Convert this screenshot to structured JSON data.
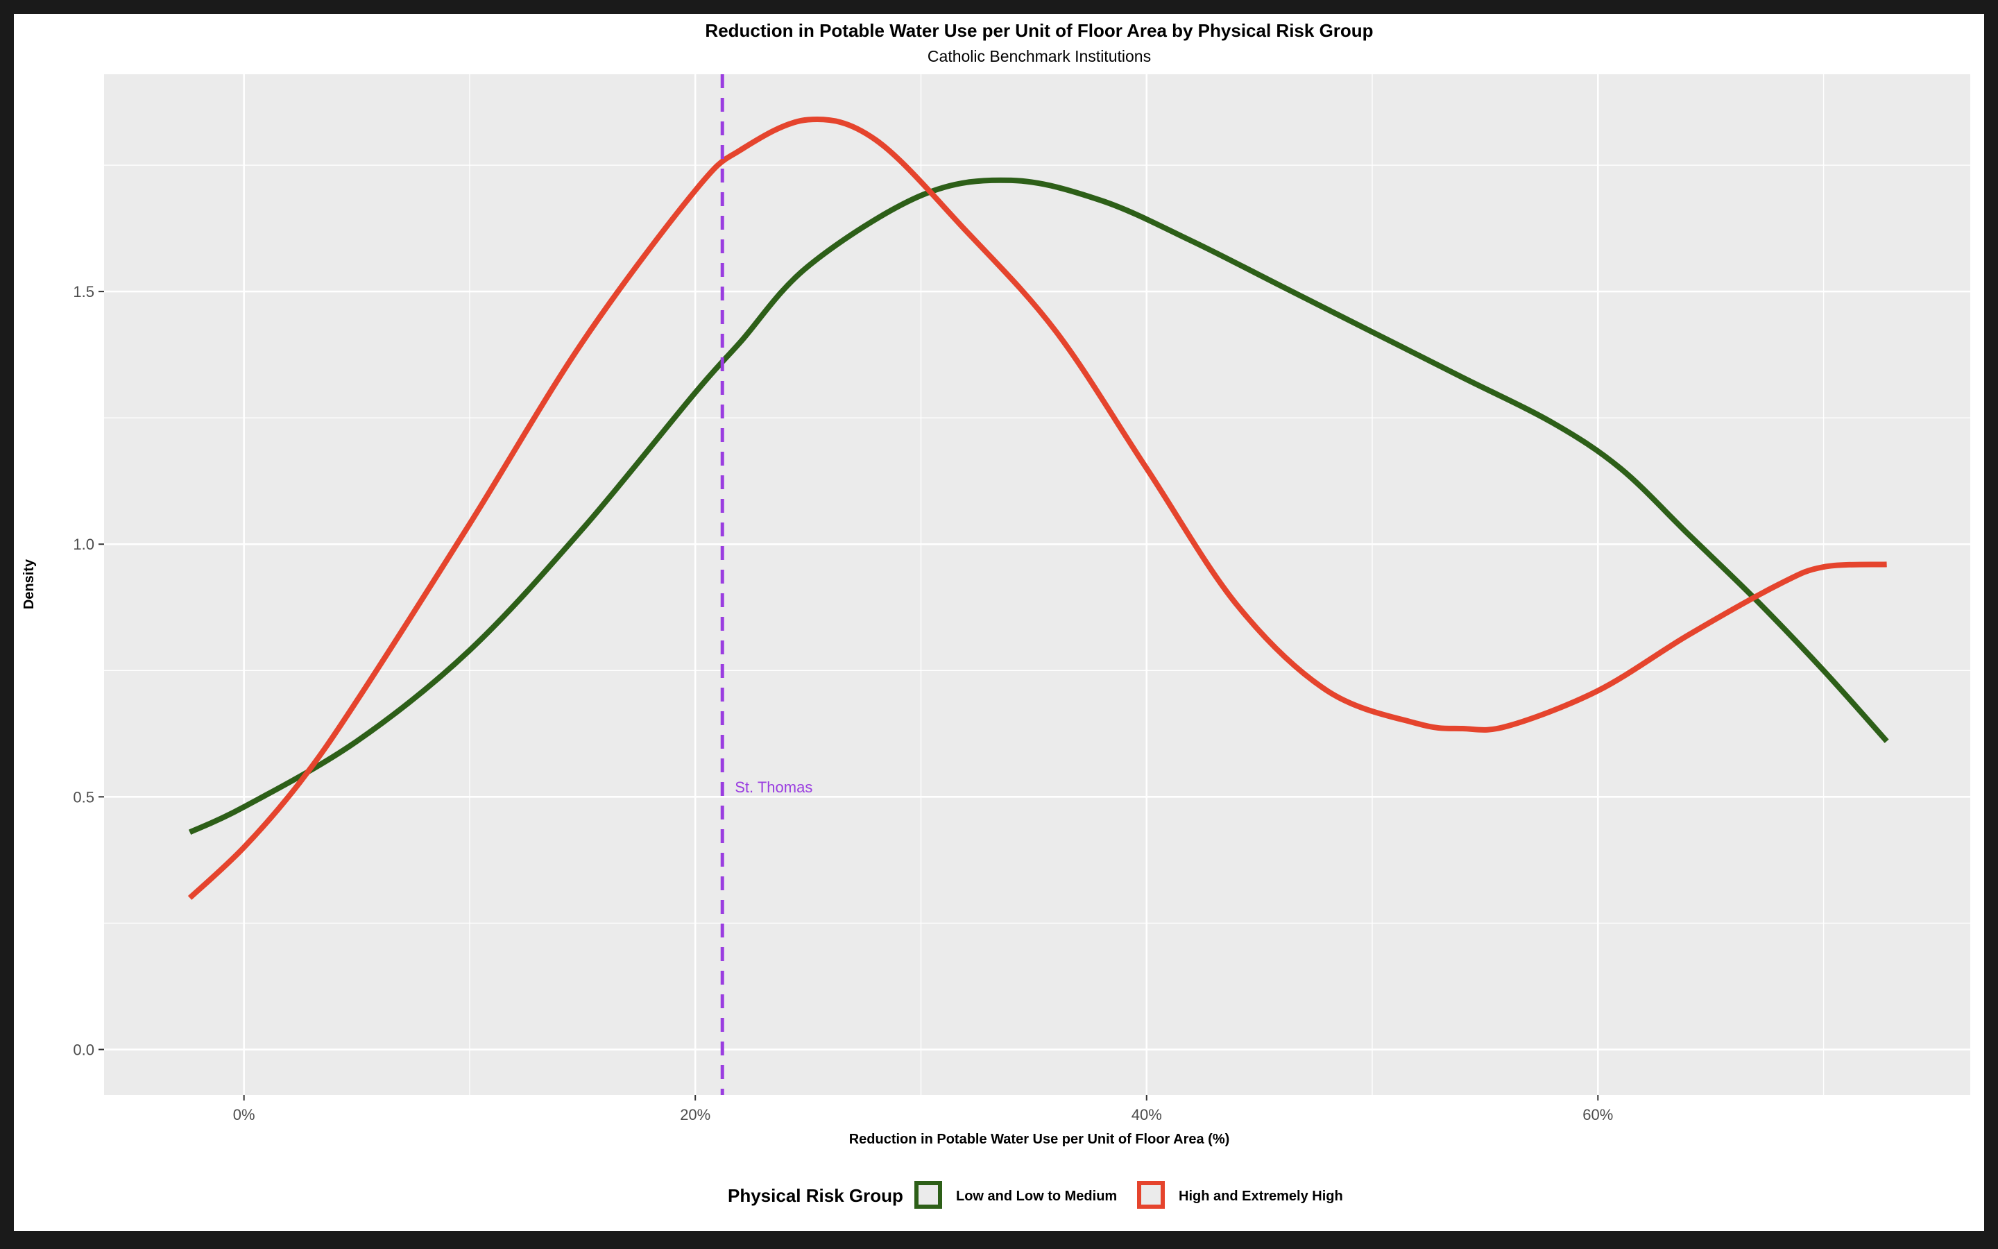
{
  "chart_data": {
    "type": "line",
    "title": "Reduction in Potable Water Use per Unit of Floor Area by Physical Risk Group",
    "subtitle": "Catholic Benchmark Institutions",
    "xlabel": "Reduction in Potable Water Use per Unit of Floor Area (%)",
    "ylabel": "Density",
    "xlim": [
      -6.2,
      76.5
    ],
    "ylim": [
      -0.09,
      1.93
    ],
    "x_ticks": [
      0,
      20,
      40,
      60
    ],
    "x_tick_labels": [
      "0%",
      "20%",
      "40%",
      "60%"
    ],
    "y_ticks": [
      0.0,
      0.5,
      1.0,
      1.5
    ],
    "y_tick_labels": [
      "0.0",
      "0.5",
      "1.0",
      "1.5"
    ],
    "grid": true,
    "legend": {
      "title": "Physical Risk Group",
      "position": "bottom"
    },
    "series": [
      {
        "name": "Low and Low to Medium",
        "color": "#2d5f18",
        "x": [
          -2.4,
          0,
          5,
          10,
          15,
          20,
          22,
          25,
          30,
          34,
          38,
          42,
          46,
          50,
          54,
          58,
          61,
          64,
          67,
          70,
          72.8
        ],
        "y": [
          0.43,
          0.48,
          0.61,
          0.79,
          1.03,
          1.3,
          1.4,
          1.55,
          1.69,
          1.72,
          1.68,
          1.6,
          1.51,
          1.42,
          1.33,
          1.24,
          1.15,
          1.02,
          0.89,
          0.75,
          0.61
        ]
      },
      {
        "name": "High and Extremely High",
        "color": "#e5442d",
        "x": [
          -2.4,
          0,
          2.5,
          5,
          10,
          15,
          20,
          22,
          25,
          28,
          32,
          36,
          40,
          44,
          48,
          52,
          54,
          56,
          60,
          64,
          68,
          70,
          72.8
        ],
        "y": [
          0.3,
          0.4,
          0.53,
          0.69,
          1.04,
          1.4,
          1.7,
          1.78,
          1.84,
          1.8,
          1.62,
          1.42,
          1.15,
          0.88,
          0.71,
          0.645,
          0.635,
          0.64,
          0.71,
          0.82,
          0.92,
          0.955,
          0.96
        ]
      }
    ],
    "annotations": [
      {
        "type": "vline",
        "x": 21.2,
        "label": "St. Thomas",
        "label_y": 0.52,
        "color": "#9a3de0"
      }
    ]
  },
  "colors": {
    "panel_background": "#ebebeb",
    "gridline": "#ffffff",
    "page_background": "#ffffff",
    "border": "#1a1a1a"
  }
}
